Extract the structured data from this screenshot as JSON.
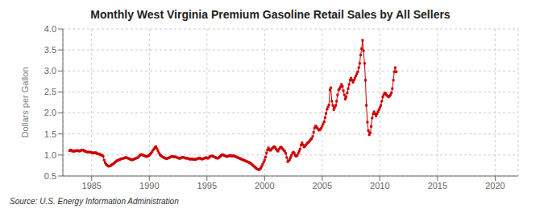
{
  "chart_data": {
    "type": "line",
    "title": "Monthly West Virginia Premium Gasoline Retail Sales by All Sellers",
    "ylabel": "Dollars per Gallon",
    "annotations": [
      "Source: U.S. Energy Information Administration"
    ],
    "color": "#cc0000",
    "marker": "square",
    "line_style": "solid",
    "grid": true,
    "xlim": [
      1982.5,
      2022
    ],
    "ylim": [
      0.5,
      4.0
    ],
    "xticks": [
      1985,
      1990,
      1995,
      2000,
      2005,
      2010,
      2015,
      2020
    ],
    "yticks": [
      0.5,
      {
        "value": 1.0,
        "label": "1.0"
      },
      1.5,
      {
        "value": 2.0,
        "label": "2.0"
      },
      2.5,
      {
        "value": 3.0,
        "label": "3.0"
      },
      3.5,
      {
        "value": 4.0,
        "label": "4.0"
      }
    ],
    "x": [
      1983.08,
      1983.17,
      1983.25,
      1983.33,
      1983.42,
      1983.5,
      1983.58,
      1983.67,
      1983.75,
      1983.83,
      1983.92,
      1984.0,
      1984.08,
      1984.17,
      1984.25,
      1984.33,
      1984.42,
      1984.5,
      1984.58,
      1984.67,
      1984.75,
      1984.83,
      1984.92,
      1985.0,
      1985.08,
      1985.17,
      1985.25,
      1985.33,
      1985.42,
      1985.5,
      1985.58,
      1985.67,
      1985.75,
      1985.83,
      1985.92,
      1986.0,
      1986.08,
      1986.17,
      1986.25,
      1986.33,
      1986.42,
      1986.5,
      1986.58,
      1986.67,
      1986.75,
      1986.83,
      1986.92,
      1987.0,
      1987.08,
      1987.17,
      1987.25,
      1987.33,
      1987.42,
      1987.5,
      1987.58,
      1987.67,
      1987.75,
      1987.83,
      1987.92,
      1988.0,
      1988.08,
      1988.17,
      1988.25,
      1988.33,
      1988.42,
      1988.5,
      1988.58,
      1988.67,
      1988.75,
      1988.83,
      1988.92,
      1989.0,
      1989.08,
      1989.17,
      1989.25,
      1989.33,
      1989.42,
      1989.5,
      1989.58,
      1989.67,
      1989.75,
      1989.83,
      1989.92,
      1990.0,
      1990.08,
      1990.17,
      1990.25,
      1990.33,
      1990.42,
      1990.5,
      1990.58,
      1990.67,
      1990.75,
      1990.83,
      1990.92,
      1991.0,
      1991.08,
      1991.17,
      1991.25,
      1991.33,
      1991.42,
      1991.5,
      1991.58,
      1991.67,
      1991.75,
      1991.83,
      1991.92,
      1992.0,
      1992.08,
      1992.17,
      1992.25,
      1992.33,
      1992.42,
      1992.5,
      1992.58,
      1992.67,
      1992.75,
      1992.83,
      1992.92,
      1993.0,
      1993.08,
      1993.17,
      1993.25,
      1993.33,
      1993.42,
      1993.5,
      1993.58,
      1993.67,
      1993.75,
      1993.83,
      1993.92,
      1994.0,
      1994.08,
      1994.17,
      1994.25,
      1994.33,
      1994.42,
      1994.5,
      1994.58,
      1994.67,
      1994.75,
      1994.83,
      1994.92,
      1995.0,
      1995.08,
      1995.17,
      1995.25,
      1995.33,
      1995.42,
      1995.5,
      1995.58,
      1995.67,
      1995.75,
      1995.83,
      1995.92,
      1996.0,
      1996.08,
      1996.17,
      1996.25,
      1996.33,
      1996.42,
      1996.5,
      1996.58,
      1996.67,
      1996.75,
      1996.83,
      1996.92,
      1997.0,
      1997.08,
      1997.17,
      1997.25,
      1997.33,
      1997.42,
      1997.5,
      1997.58,
      1997.67,
      1997.75,
      1997.83,
      1997.92,
      1998.0,
      1998.08,
      1998.17,
      1998.25,
      1998.33,
      1998.42,
      1998.5,
      1998.58,
      1998.67,
      1998.75,
      1998.83,
      1998.92,
      1999.0,
      1999.08,
      1999.17,
      1999.25,
      1999.33,
      1999.42,
      1999.5,
      1999.58,
      1999.67,
      1999.75,
      1999.83,
      1999.92,
      2000.0,
      2000.08,
      2000.17,
      2000.25,
      2000.33,
      2000.42,
      2000.5,
      2000.58,
      2000.67,
      2000.75,
      2000.83,
      2000.92,
      2001.0,
      2001.08,
      2001.17,
      2001.25,
      2001.33,
      2001.42,
      2001.5,
      2001.58,
      2001.67,
      2001.75,
      2001.83,
      2001.92,
      2002.0,
      2002.08,
      2002.17,
      2002.25,
      2002.33,
      2002.42,
      2002.5,
      2002.58,
      2002.67,
      2002.75,
      2002.83,
      2002.92,
      2003.0,
      2003.08,
      2003.17,
      2003.25,
      2003.33,
      2003.42,
      2003.5,
      2003.58,
      2003.67,
      2003.75,
      2003.83,
      2003.92,
      2004.0,
      2004.08,
      2004.17,
      2004.25,
      2004.33,
      2004.42,
      2004.5,
      2004.58,
      2004.67,
      2004.75,
      2004.83,
      2004.92,
      2005.0,
      2005.08,
      2005.17,
      2005.25,
      2005.33,
      2005.42,
      2005.5,
      2005.58,
      2005.67,
      2005.75,
      2005.83,
      2005.92,
      2006.0,
      2006.08,
      2006.17,
      2006.25,
      2006.33,
      2006.42,
      2006.5,
      2006.58,
      2006.67,
      2006.75,
      2006.83,
      2006.92,
      2007.0,
      2007.08,
      2007.17,
      2007.25,
      2007.33,
      2007.42,
      2007.5,
      2007.58,
      2007.67,
      2007.75,
      2007.83,
      2007.92,
      2008.0,
      2008.08,
      2008.17,
      2008.25,
      2008.33,
      2008.42,
      2008.5,
      2008.58,
      2008.67,
      2008.75,
      2008.83,
      2008.92,
      2009.0,
      2009.08,
      2009.17,
      2009.25,
      2009.33,
      2009.42,
      2009.5,
      2009.58,
      2009.67,
      2009.75,
      2009.83,
      2009.92,
      2010.0,
      2010.08,
      2010.17,
      2010.25,
      2010.33,
      2010.42,
      2010.5,
      2010.58,
      2010.67,
      2010.75,
      2010.83,
      2010.92,
      2011.0,
      2011.08,
      2011.17,
      2011.25,
      2011.33,
      2011.42
    ],
    "values": [
      1.1,
      1.12,
      1.11,
      1.09,
      1.09,
      1.09,
      1.1,
      1.1,
      1.11,
      1.1,
      1.09,
      1.1,
      1.11,
      1.12,
      1.12,
      1.1,
      1.09,
      1.08,
      1.07,
      1.07,
      1.07,
      1.07,
      1.06,
      1.06,
      1.05,
      1.05,
      1.05,
      1.06,
      1.04,
      1.03,
      1.03,
      1.02,
      1.01,
      1.0,
      0.99,
      0.97,
      0.88,
      0.82,
      0.78,
      0.76,
      0.74,
      0.73,
      0.74,
      0.75,
      0.77,
      0.78,
      0.8,
      0.82,
      0.84,
      0.86,
      0.87,
      0.88,
      0.89,
      0.9,
      0.91,
      0.91,
      0.92,
      0.93,
      0.94,
      0.94,
      0.93,
      0.92,
      0.91,
      0.9,
      0.89,
      0.88,
      0.89,
      0.9,
      0.91,
      0.92,
      0.93,
      0.94,
      0.96,
      0.99,
      1.01,
      1.01,
      1.0,
      0.99,
      0.98,
      0.97,
      0.96,
      0.97,
      0.98,
      1.0,
      1.02,
      1.05,
      1.08,
      1.12,
      1.15,
      1.18,
      1.2,
      1.15,
      1.1,
      1.05,
      1.01,
      0.99,
      0.97,
      0.95,
      0.94,
      0.93,
      0.92,
      0.91,
      0.92,
      0.93,
      0.94,
      0.95,
      0.96,
      0.97,
      0.96,
      0.95,
      0.96,
      0.95,
      0.94,
      0.93,
      0.92,
      0.92,
      0.93,
      0.94,
      0.95,
      0.94,
      0.93,
      0.92,
      0.93,
      0.92,
      0.91,
      0.9,
      0.9,
      0.91,
      0.9,
      0.89,
      0.9,
      0.89,
      0.9,
      0.91,
      0.92,
      0.93,
      0.92,
      0.91,
      0.9,
      0.91,
      0.92,
      0.93,
      0.94,
      0.93,
      0.92,
      0.94,
      0.96,
      0.97,
      0.98,
      0.97,
      0.96,
      0.95,
      0.94,
      0.93,
      0.92,
      0.93,
      0.95,
      0.97,
      0.99,
      1.01,
      1.0,
      0.99,
      0.98,
      0.97,
      0.96,
      0.97,
      0.98,
      0.99,
      0.98,
      0.97,
      0.98,
      0.98,
      0.97,
      0.96,
      0.95,
      0.94,
      0.93,
      0.92,
      0.91,
      0.9,
      0.89,
      0.88,
      0.87,
      0.86,
      0.85,
      0.84,
      0.83,
      0.82,
      0.81,
      0.79,
      0.77,
      0.75,
      0.73,
      0.71,
      0.69,
      0.67,
      0.66,
      0.65,
      0.66,
      0.69,
      0.73,
      0.78,
      0.83,
      0.88,
      0.95,
      1.05,
      1.12,
      1.17,
      1.13,
      1.11,
      1.13,
      1.16,
      1.18,
      1.2,
      1.18,
      1.14,
      1.11,
      1.09,
      1.14,
      1.17,
      1.19,
      1.17,
      1.14,
      1.11,
      1.09,
      1.04,
      0.94,
      0.84,
      0.86,
      0.89,
      0.94,
      0.99,
      1.04,
      1.07,
      1.04,
      0.99,
      0.97,
      0.99,
      1.04,
      1.09,
      1.14,
      1.24,
      1.29,
      1.24,
      1.19,
      1.21,
      1.24,
      1.27,
      1.29,
      1.31,
      1.34,
      1.37,
      1.39,
      1.44,
      1.54,
      1.64,
      1.69,
      1.67,
      1.64,
      1.61,
      1.59,
      1.61,
      1.64,
      1.69,
      1.74,
      1.79,
      1.89,
      1.99,
      2.09,
      2.14,
      2.19,
      2.55,
      2.6,
      2.28,
      2.18,
      2.08,
      2.13,
      2.18,
      2.28,
      2.43,
      2.55,
      2.58,
      2.62,
      2.68,
      2.63,
      2.53,
      2.43,
      2.33,
      2.38,
      2.48,
      2.58,
      2.68,
      2.78,
      2.83,
      2.78,
      2.73,
      2.78,
      2.83,
      2.88,
      2.93,
      2.98,
      3.08,
      3.18,
      3.38,
      3.53,
      3.73,
      3.48,
      3.18,
      2.78,
      2.18,
      1.78,
      1.58,
      1.48,
      1.53,
      1.68,
      1.88,
      1.98,
      2.03,
      1.98,
      1.93,
      1.98,
      2.03,
      2.08,
      2.13,
      2.18,
      2.28,
      2.38,
      2.43,
      2.48,
      2.46,
      2.43,
      2.4,
      2.38,
      2.4,
      2.43,
      2.48,
      2.58,
      2.78,
      2.98,
      3.08,
      2.98
    ]
  }
}
